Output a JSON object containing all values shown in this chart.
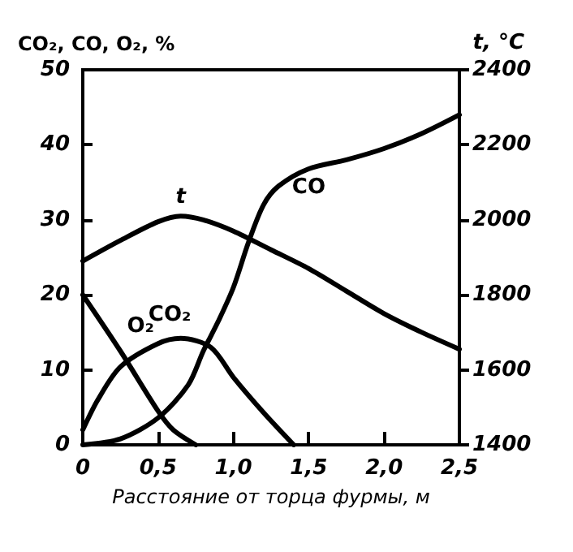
{
  "chart_data": {
    "type": "line",
    "ylabel": "CO₂, CO, O₂, %",
    "y2label": "t, °C",
    "xlabel": "Расстояние от торца фурмы, м",
    "series": [
      {
        "name": "t",
        "axis": "y2",
        "color": "#000000",
        "x": [
          0,
          0.25,
          0.5,
          0.65,
          0.8,
          1.0,
          1.25,
          1.5,
          1.75,
          2.0,
          2.25,
          2.5
        ],
        "values": [
          1890,
          1945,
          1995,
          2010,
          2000,
          1970,
          1920,
          1870,
          1810,
          1750,
          1700,
          1655
        ]
      },
      {
        "name": "CO",
        "color": "#000000",
        "x": [
          0,
          0.25,
          0.5,
          0.7,
          0.8,
          0.9,
          1.0,
          1.1,
          1.2,
          1.3,
          1.5,
          1.75,
          2.0,
          2.25,
          2.5
        ],
        "values": [
          0,
          0.8,
          3.6,
          8,
          12.5,
          16.5,
          21,
          27,
          32,
          34.5,
          36.8,
          38,
          39.5,
          41.5,
          44
        ]
      },
      {
        "name": "O₂",
        "color": "#000000",
        "x": [
          0,
          0.25,
          0.5,
          0.6,
          0.75
        ],
        "values": [
          20,
          12.5,
          4.5,
          2,
          0
        ]
      },
      {
        "name": "CO₂",
        "color": "#000000",
        "x": [
          0,
          0.1,
          0.25,
          0.5,
          0.65,
          0.85,
          1.0,
          1.2,
          1.4
        ],
        "values": [
          2,
          6,
          10.4,
          13.5,
          14.2,
          13,
          9,
          4.3,
          0
        ]
      }
    ],
    "xlim": [
      0,
      2.5
    ],
    "xticks": [
      0,
      {
        "value": 0.5,
        "label": "0,5"
      },
      {
        "value": 1,
        "label": "1,0"
      },
      {
        "value": 1.5,
        "label": "1,5"
      },
      {
        "value": 2,
        "label": "2,0"
      },
      {
        "value": 2.5,
        "label": "2,5"
      }
    ],
    "ylim": [
      0,
      50
    ],
    "yticks": [
      0,
      10,
      20,
      30,
      40,
      50
    ],
    "y2lim": [
      1400,
      2400
    ],
    "y2ticks": [
      1400,
      1600,
      1800,
      2000,
      2200,
      2400
    ],
    "grid": false,
    "legend": false,
    "marker": "none",
    "line_style": "solid"
  }
}
